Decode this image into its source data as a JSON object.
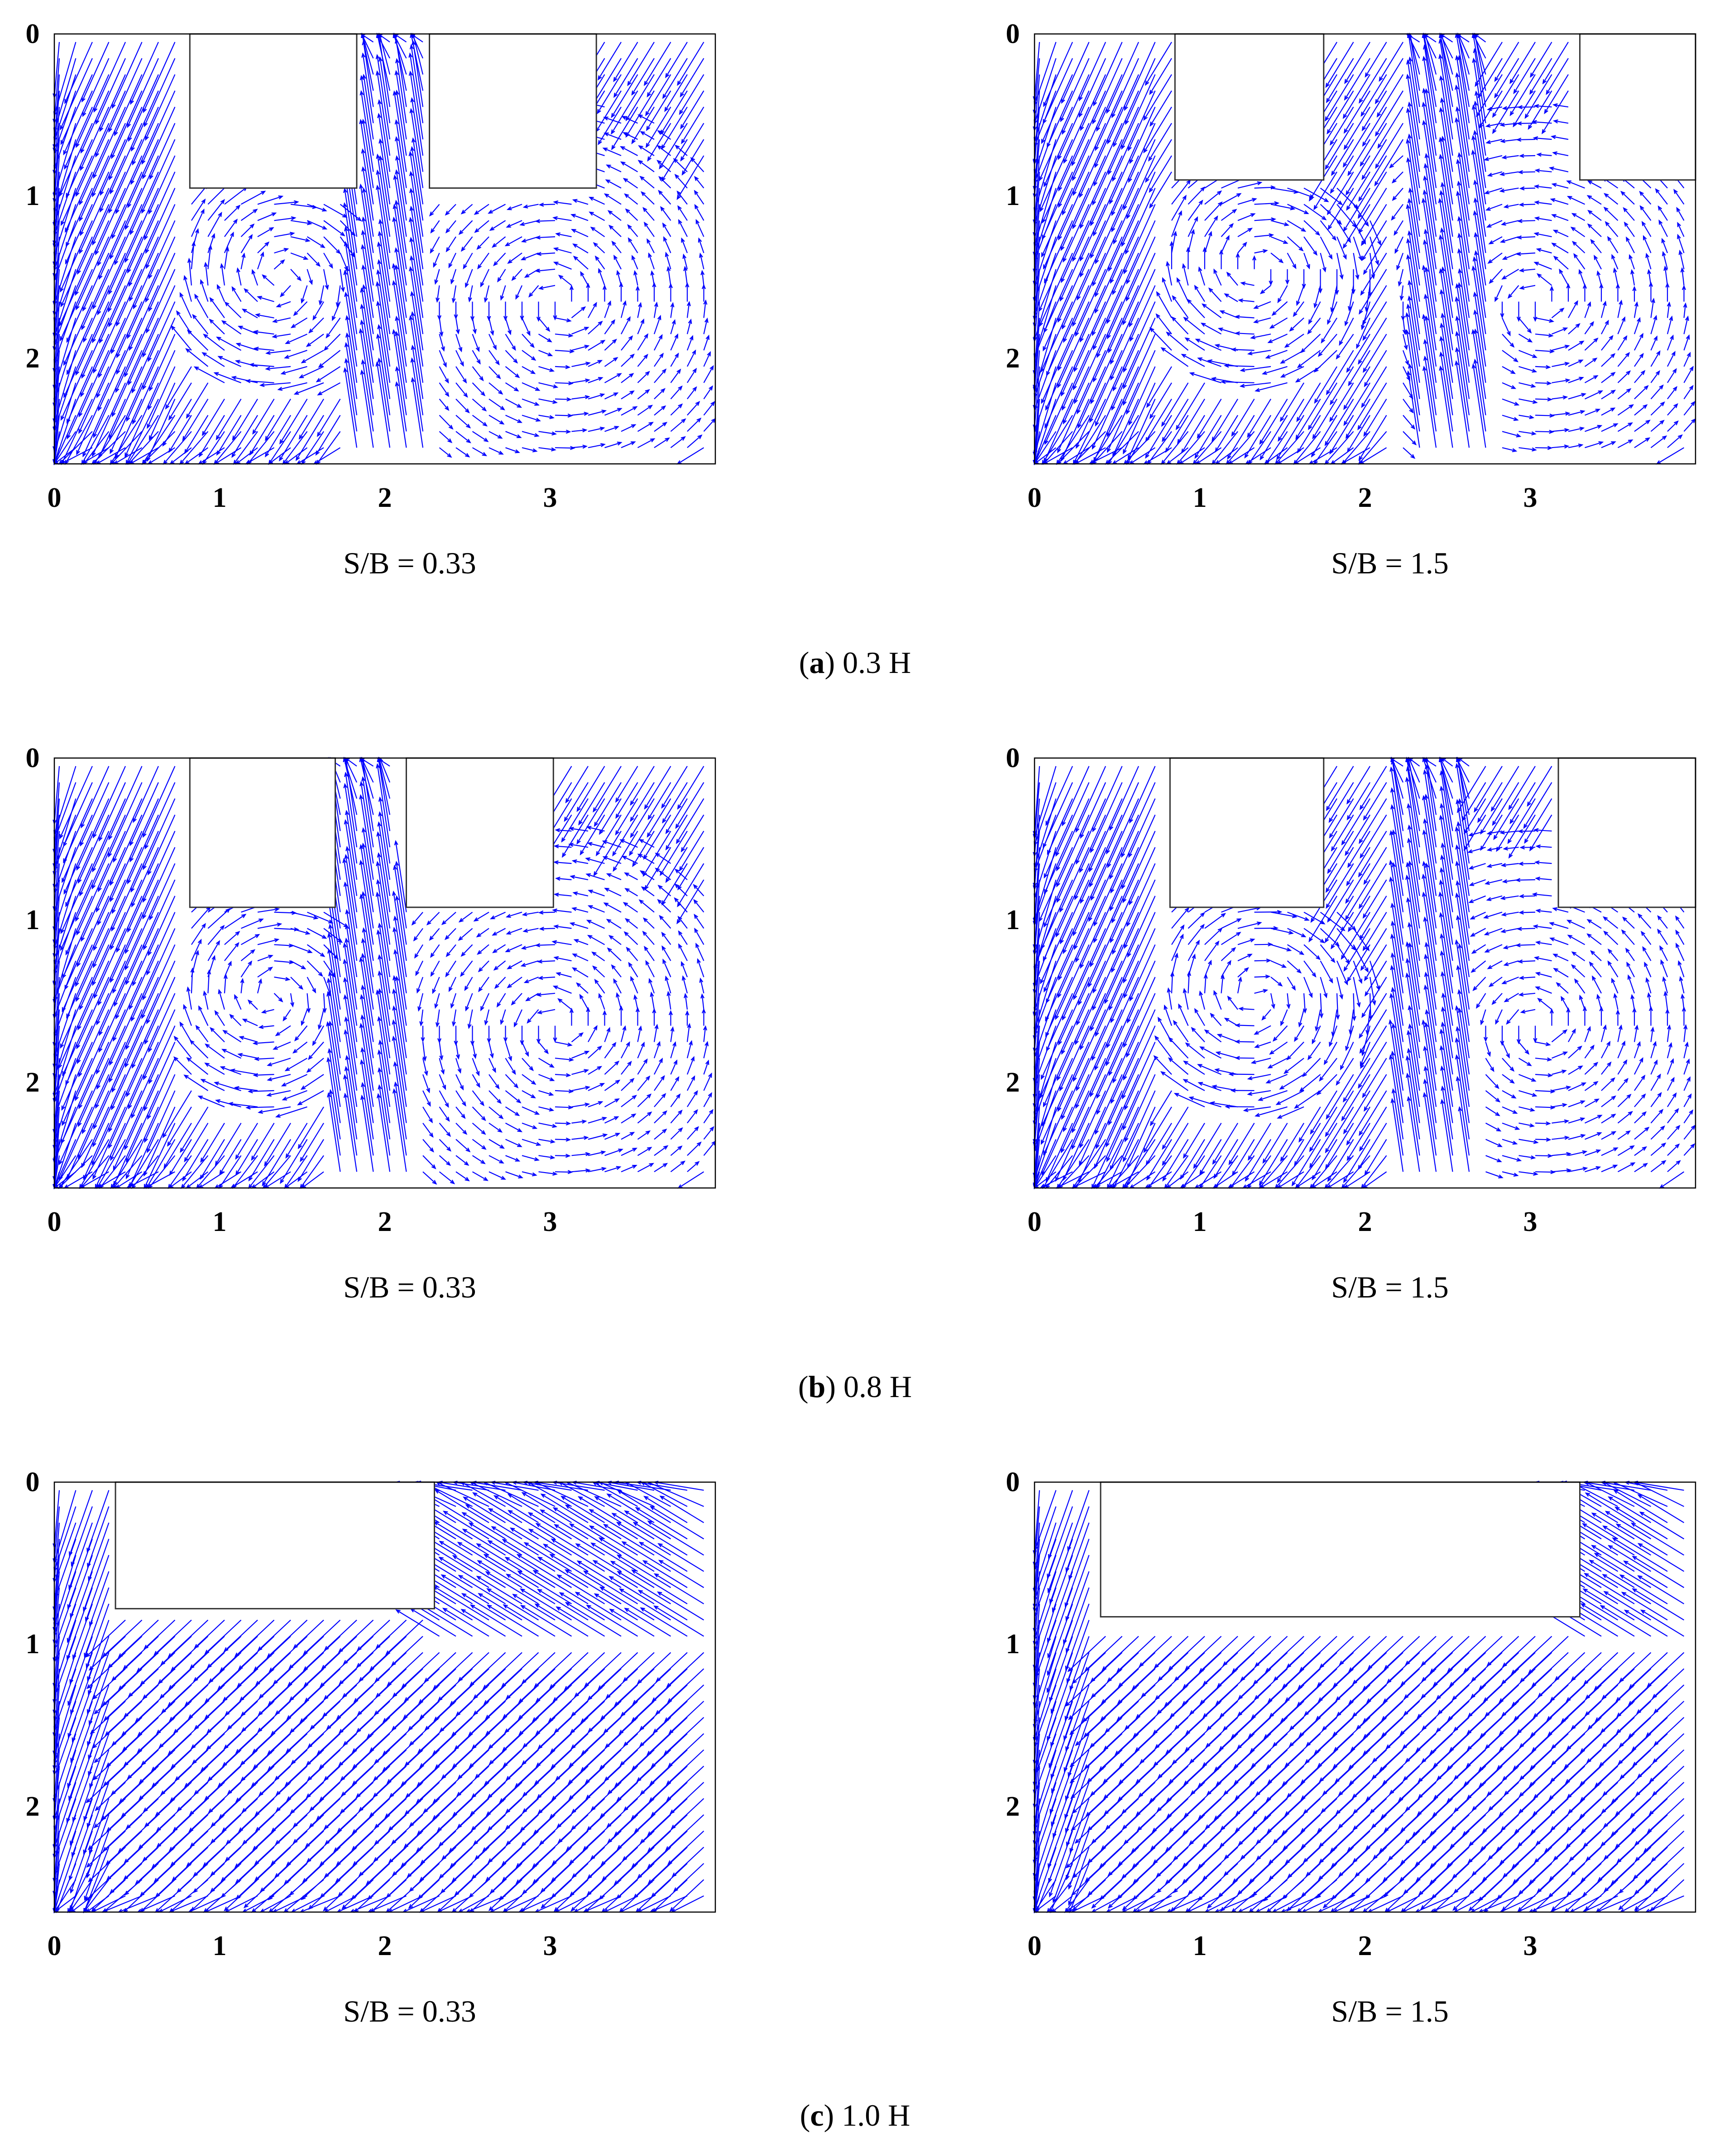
{
  "colors": {
    "vector": "#0000ff",
    "building": "#333333",
    "frame": "#000000"
  },
  "rows": [
    {
      "caption_letter": "a",
      "caption_text": "0.3 H"
    },
    {
      "caption_letter": "b",
      "caption_text": "0.8 H"
    },
    {
      "caption_letter": "c",
      "caption_text": "1.0 H"
    }
  ],
  "chart_data": [
    {
      "type": "quiver",
      "panel": "a-left",
      "title": "S/B = 0.33",
      "xlim": [
        0,
        4
      ],
      "ylim": [
        0,
        2.65
      ],
      "y_inverted": true,
      "xticks": [
        "0",
        "1",
        "2",
        "3"
      ],
      "yticks": [
        "0",
        "1",
        "2"
      ],
      "buildings": [
        {
          "x0": 0.82,
          "x1": 1.83,
          "y0": 0,
          "y1": 0.95
        },
        {
          "x0": 2.27,
          "x1": 3.28,
          "y0": 0,
          "y1": 0.95
        }
      ],
      "flow_pattern": "wake-vortices-narrow-gap"
    },
    {
      "type": "quiver",
      "panel": "a-right",
      "title": "S/B = 1.5",
      "xlim": [
        0,
        4
      ],
      "ylim": [
        0,
        2.65
      ],
      "y_inverted": true,
      "xticks": [
        "0",
        "1",
        "2",
        "3"
      ],
      "yticks": [
        "0",
        "1",
        "2"
      ],
      "buildings": [
        {
          "x0": 0.85,
          "x1": 1.75,
          "y0": 0,
          "y1": 0.9
        },
        {
          "x0": 3.3,
          "x1": 4.0,
          "y0": 0,
          "y1": 0.9
        }
      ],
      "flow_pattern": "wake-vortices-wide-gap"
    },
    {
      "type": "quiver",
      "panel": "b-left",
      "title": "S/B = 0.33",
      "xlim": [
        0,
        4
      ],
      "ylim": [
        0,
        2.65
      ],
      "y_inverted": true,
      "xticks": [
        "0",
        "1",
        "2",
        "3"
      ],
      "yticks": [
        "0",
        "1",
        "2"
      ],
      "buildings": [
        {
          "x0": 0.82,
          "x1": 1.7,
          "y0": 0,
          "y1": 0.92
        },
        {
          "x0": 2.13,
          "x1": 3.02,
          "y0": 0,
          "y1": 0.92
        }
      ],
      "flow_pattern": "wake-vortices-narrow-gap"
    },
    {
      "type": "quiver",
      "panel": "b-right",
      "title": "S/B = 1.5",
      "xlim": [
        0,
        4
      ],
      "ylim": [
        0,
        2.65
      ],
      "y_inverted": true,
      "xticks": [
        "0",
        "1",
        "2",
        "3"
      ],
      "yticks": [
        "0",
        "1",
        "2"
      ],
      "buildings": [
        {
          "x0": 0.82,
          "x1": 1.75,
          "y0": 0,
          "y1": 0.92
        },
        {
          "x0": 3.17,
          "x1": 4.0,
          "y0": 0,
          "y1": 0.92
        }
      ],
      "flow_pattern": "wake-vortices-wide-gap"
    },
    {
      "type": "quiver",
      "panel": "c-left",
      "title": "S/B = 0.33",
      "xlim": [
        0,
        4
      ],
      "ylim": [
        0,
        2.65
      ],
      "y_inverted": true,
      "xticks": [
        "0",
        "1",
        "2",
        "3"
      ],
      "yticks": [
        "0",
        "1",
        "2"
      ],
      "buildings": [
        {
          "x0": 0.37,
          "x1": 2.3,
          "y0": 0,
          "y1": 0.78
        }
      ],
      "flow_pattern": "roof-level-diagonal"
    },
    {
      "type": "quiver",
      "panel": "c-right",
      "title": "S/B = 1.5",
      "xlim": [
        0,
        4
      ],
      "ylim": [
        0,
        2.65
      ],
      "y_inverted": true,
      "xticks": [
        "0",
        "1",
        "2",
        "3"
      ],
      "yticks": [
        "0",
        "1",
        "2"
      ],
      "buildings": [
        {
          "x0": 0.4,
          "x1": 3.3,
          "y0": 0,
          "y1": 0.83
        }
      ],
      "flow_pattern": "roof-level-diagonal"
    }
  ]
}
